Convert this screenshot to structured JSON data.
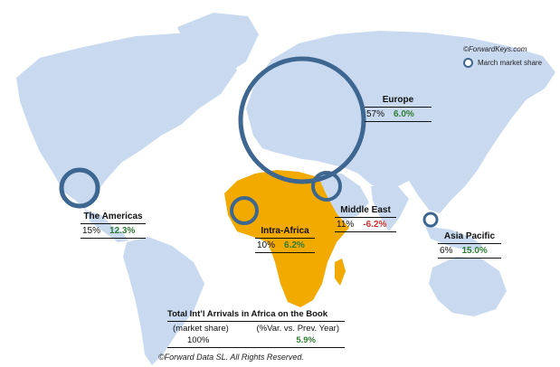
{
  "credit": "©ForwardKeys.com",
  "legend_label": "March market share",
  "colors": {
    "land": "#c9daf0",
    "africa": "#f2a900",
    "circle": "#3d6690",
    "positive": "#2e7d32",
    "negative": "#d32f2f"
  },
  "regions": {
    "europe": {
      "name": "Europe",
      "share": "57%",
      "change": "6.0%",
      "share_value": 57
    },
    "americas": {
      "name": "The Americas",
      "share": "15%",
      "change": "12.3%",
      "share_value": 15
    },
    "middle_east": {
      "name": "Middle East",
      "share": "11%",
      "change": "-6.2%",
      "share_value": 11
    },
    "intra_africa": {
      "name": "Intra-Africa",
      "share": "10%",
      "change": "6.2%",
      "share_value": 10
    },
    "asia_pacific": {
      "name": "Asia Pacific",
      "share": "6%",
      "change": "15.0%",
      "share_value": 6
    }
  },
  "total": {
    "title": "Total Int’l Arrivals in Africa on the Book",
    "col1_label": "(market share)",
    "col2_label": "(%Var. vs. Prev. Year)",
    "share": "100%",
    "change": "5.9%"
  },
  "footer": "©Forward Data SL. All Rights Reserved."
}
